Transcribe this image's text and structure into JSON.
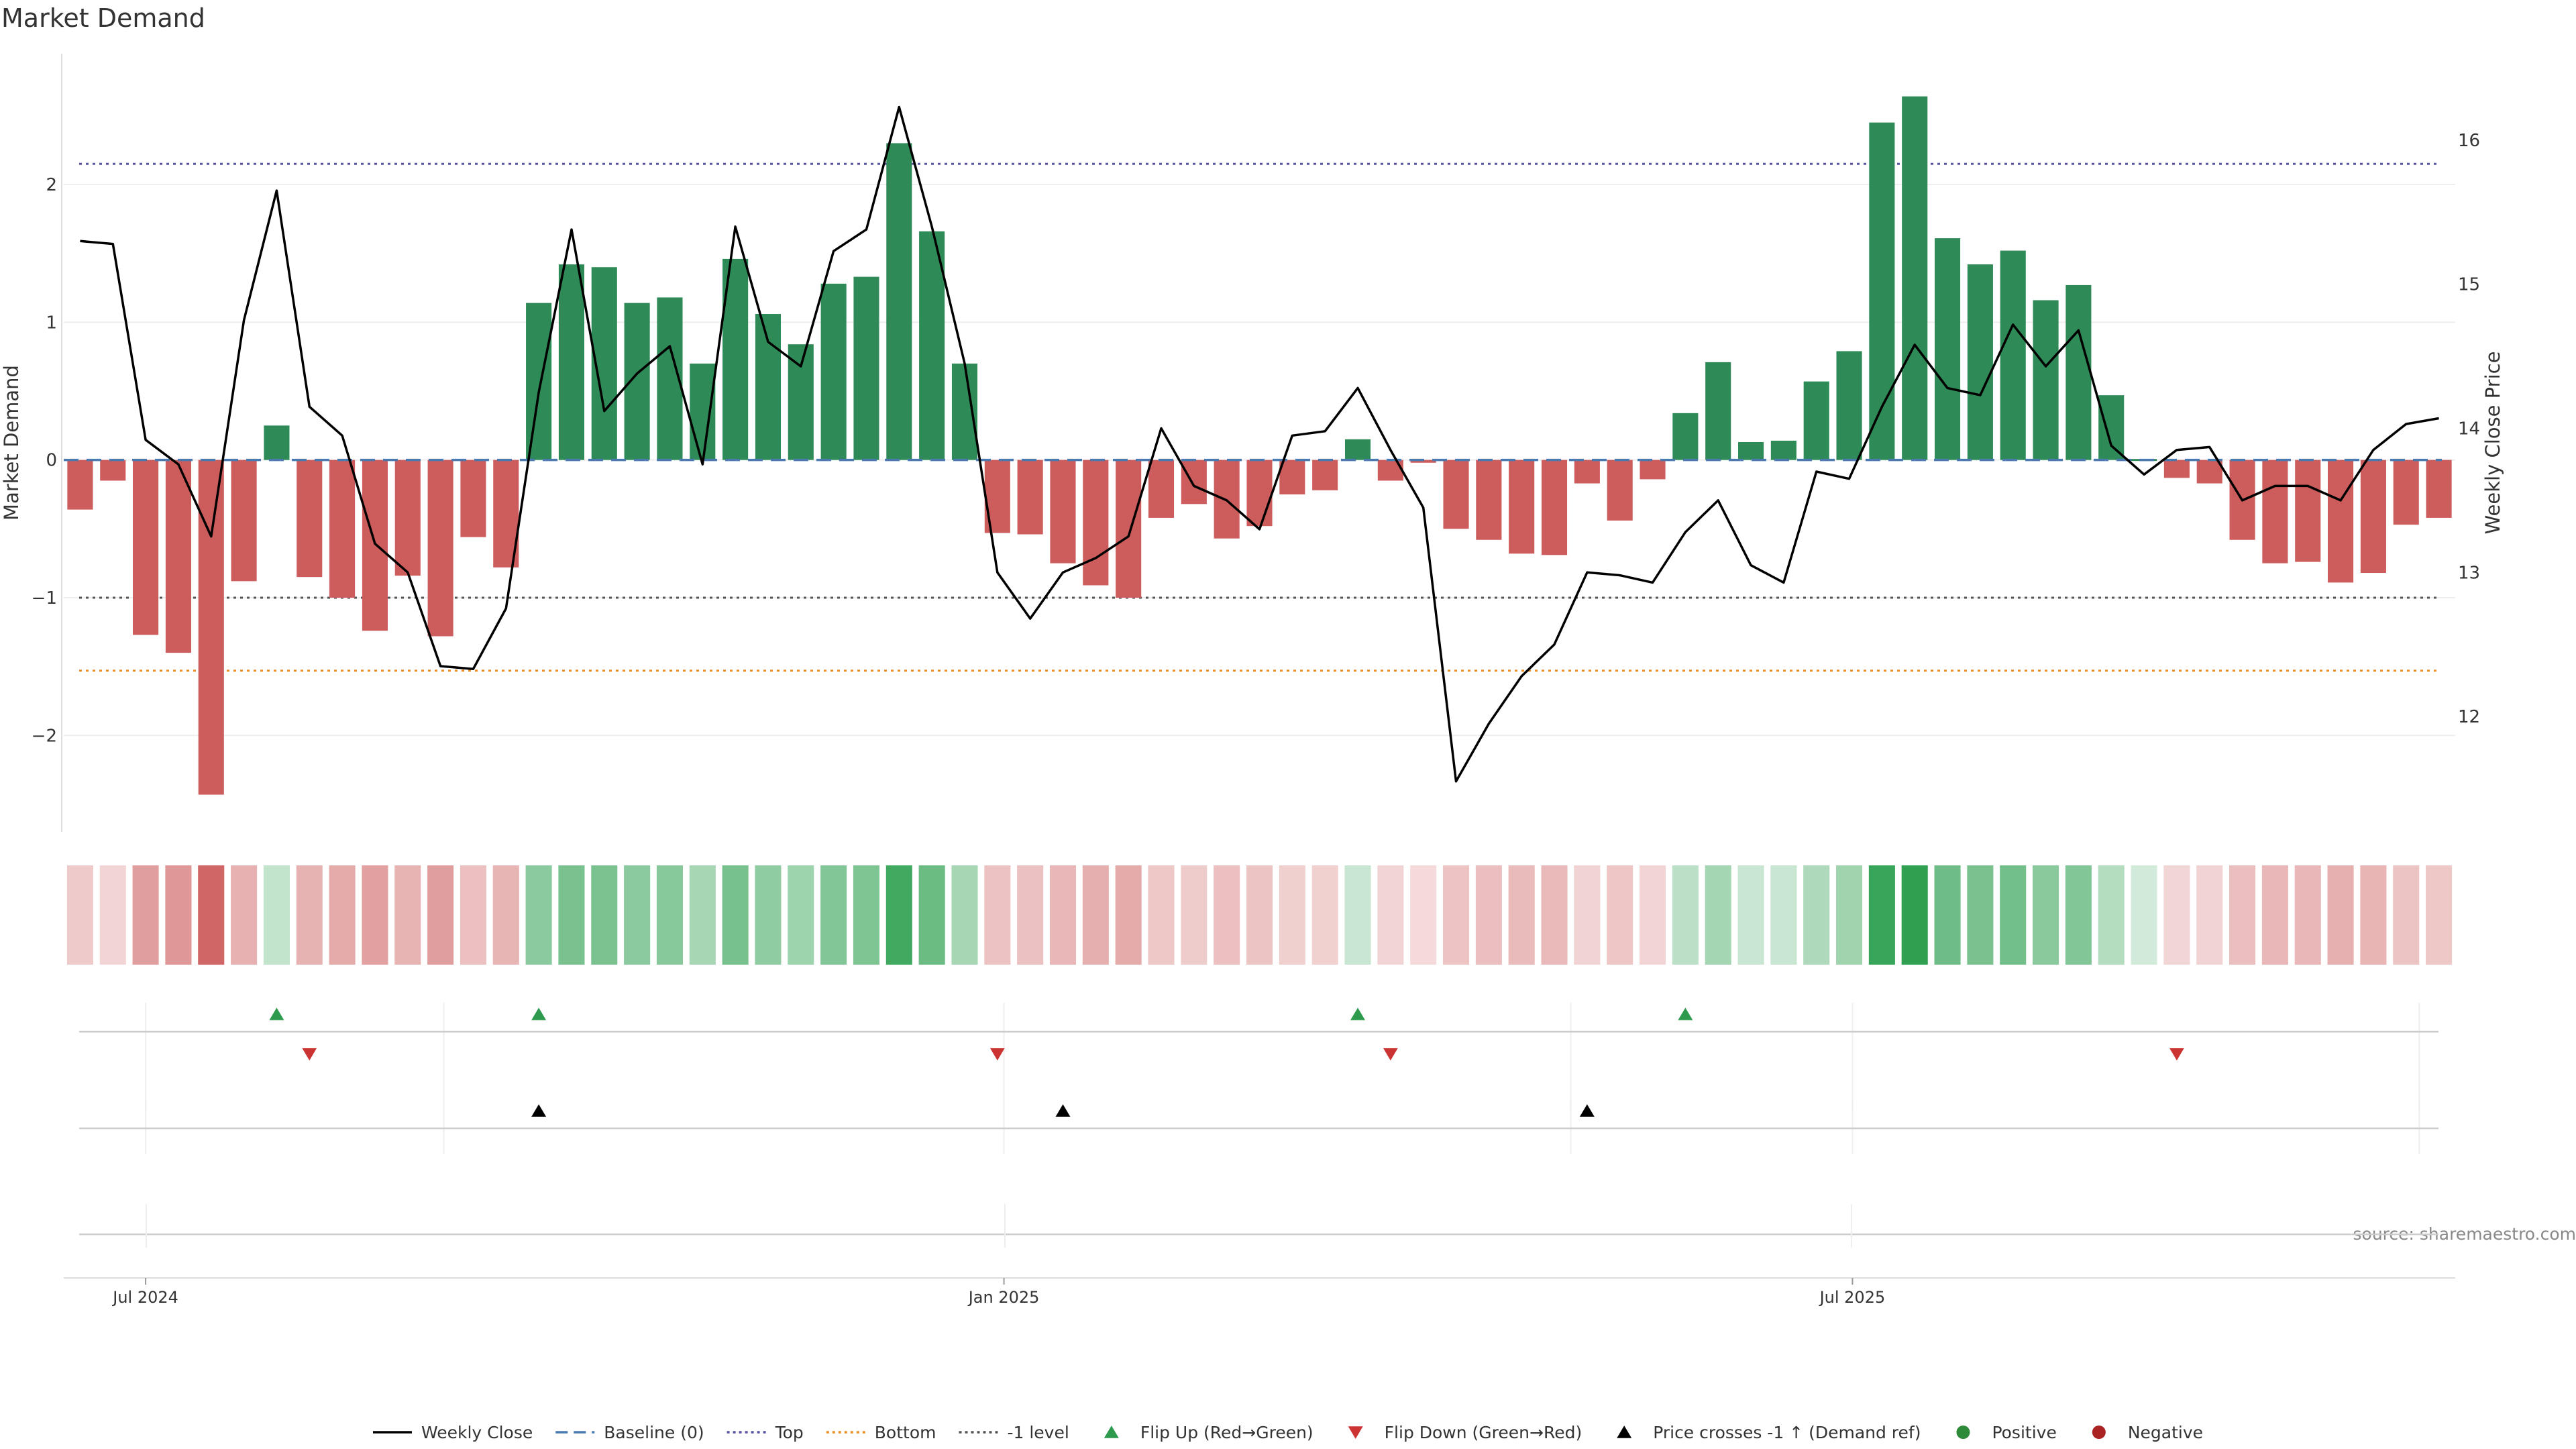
{
  "chart_data": {
    "type": "bar",
    "title": "Market Demand",
    "ylabel": "Market Demand",
    "y2label": "Weekly Close Price",
    "ylim": [
      -2.7,
      2.95
    ],
    "y2lim": [
      11.2,
      16.6
    ],
    "yticks": [
      -2,
      -1,
      0,
      1,
      2
    ],
    "y2ticks": [
      12,
      13,
      14,
      15,
      16
    ],
    "xticks": [
      {
        "label": "Jul 2024",
        "index": 2.5
      },
      {
        "label": "Jan 2025",
        "index": 28.7
      },
      {
        "label": "Jul 2025",
        "index": 54.6
      }
    ],
    "reference_lines": {
      "top": 2.15,
      "bottom": -1.53,
      "minus_one": -1,
      "baseline": 0
    },
    "demand": [
      -0.36,
      -0.15,
      -1.27,
      -1.4,
      -2.43,
      -0.88,
      0.25,
      -0.85,
      -1.0,
      -1.24,
      -0.84,
      -1.28,
      -0.56,
      -0.78,
      1.14,
      1.42,
      1.4,
      1.14,
      1.18,
      0.7,
      1.46,
      1.06,
      0.84,
      1.28,
      1.33,
      2.3,
      1.66,
      0.7,
      -0.53,
      -0.54,
      -0.75,
      -0.91,
      -1.0,
      -0.42,
      -0.32,
      -0.57,
      -0.48,
      -0.25,
      -0.22,
      0.15,
      -0.15,
      -0.02,
      -0.5,
      -0.58,
      -0.68,
      -0.69,
      -0.17,
      -0.44,
      -0.14,
      0.34,
      0.71,
      0.13,
      0.14,
      0.57,
      0.79,
      2.45,
      2.64,
      1.61,
      1.42,
      1.52,
      1.16,
      1.27,
      0.47,
      0,
      -0.13,
      -0.17,
      -0.58,
      -0.75,
      -0.74,
      -0.89,
      -0.82,
      -0.47,
      -0.42
    ],
    "close_points": [
      [
        0.5,
        15.3
      ],
      [
        1.5,
        15.28
      ],
      [
        2.5,
        13.92
      ],
      [
        3.5,
        13.75
      ],
      [
        4.5,
        13.25
      ],
      [
        5.5,
        14.75
      ],
      [
        6.5,
        15.65
      ],
      [
        7.5,
        14.15
      ],
      [
        8.5,
        13.95
      ],
      [
        9.5,
        13.2
      ],
      [
        10.5,
        13.0
      ],
      [
        11.5,
        12.35
      ],
      [
        12.5,
        12.33
      ],
      [
        13.5,
        12.75
      ],
      [
        14.5,
        14.25
      ],
      [
        15.5,
        15.38
      ],
      [
        16.5,
        14.12
      ],
      [
        17.5,
        14.38
      ],
      [
        18.5,
        14.57
      ],
      [
        19.5,
        13.75
      ],
      [
        20.5,
        15.4
      ],
      [
        21.5,
        14.6
      ],
      [
        22.5,
        14.43
      ],
      [
        23.5,
        15.23
      ],
      [
        24.5,
        15.38
      ],
      [
        25.5,
        16.23
      ],
      [
        26.5,
        15.4
      ],
      [
        27.5,
        14.45
      ],
      [
        28.5,
        13.0
      ],
      [
        29.5,
        12.68
      ],
      [
        30.5,
        13.0
      ],
      [
        31.5,
        13.1
      ],
      [
        32.5,
        13.25
      ],
      [
        33.5,
        14.0
      ],
      [
        34.5,
        13.6
      ],
      [
        35.5,
        13.5
      ],
      [
        36.5,
        13.3
      ],
      [
        37.5,
        13.95
      ],
      [
        38.5,
        13.98
      ],
      [
        39.5,
        14.28
      ],
      [
        40.5,
        13.85
      ],
      [
        41.5,
        13.45
      ],
      [
        42.5,
        11.55
      ],
      [
        43.5,
        11.95
      ],
      [
        44.5,
        12.28
      ],
      [
        45.5,
        12.5
      ],
      [
        46.5,
        13.0
      ],
      [
        47.5,
        12.98
      ],
      [
        48.5,
        12.93
      ],
      [
        49.5,
        13.28
      ],
      [
        50.5,
        13.5
      ],
      [
        51.5,
        13.05
      ],
      [
        52.5,
        12.93
      ],
      [
        53.5,
        13.7
      ],
      [
        54.5,
        13.65
      ],
      [
        55.5,
        14.15
      ],
      [
        56.5,
        14.58
      ],
      [
        57.5,
        14.28
      ],
      [
        58.5,
        14.23
      ],
      [
        59.5,
        14.72
      ],
      [
        60.5,
        14.43
      ],
      [
        61.5,
        14.68
      ],
      [
        62.5,
        13.88
      ],
      [
        63.5,
        13.68
      ],
      [
        64.5,
        13.85
      ],
      [
        65.5,
        13.87
      ],
      [
        66.5,
        13.5
      ],
      [
        67.5,
        13.6
      ],
      [
        68.5,
        13.6
      ],
      [
        69.5,
        13.5
      ],
      [
        70.5,
        13.85
      ],
      [
        71.5,
        14.03
      ],
      [
        72.5,
        14.07
      ]
    ],
    "flip_up_index": [
      6,
      14,
      39,
      49
    ],
    "flip_down_index": [
      7,
      28,
      40,
      64
    ],
    "price_cross_index": [
      14,
      30,
      46
    ],
    "source": "source: sharemaestro.com",
    "legend": [
      {
        "label": "Weekly Close",
        "kind": "line",
        "color": "#000000"
      },
      {
        "label": "Baseline (0)",
        "kind": "dash",
        "color": "#4a7ab0"
      },
      {
        "label": "Top",
        "kind": "dot",
        "color": "#5a55a0"
      },
      {
        "label": "Bottom",
        "kind": "dot",
        "color": "#e8912a"
      },
      {
        "label": "-1 level",
        "kind": "dot",
        "color": "#555555"
      },
      {
        "label": "Flip Up (Red→Green)",
        "kind": "up",
        "color": "#2e9a4e"
      },
      {
        "label": "Flip Down (Green→Red)",
        "kind": "down",
        "color": "#cc3333"
      },
      {
        "label": "Price crosses -1 ↑ (Demand ref)",
        "kind": "up",
        "color": "#000000"
      },
      {
        "label": "Positive",
        "kind": "circle",
        "color": "#2e8b3a"
      },
      {
        "label": "Negative",
        "kind": "circle",
        "color": "#aa2222"
      }
    ],
    "colors": {
      "positive": "#2e8b57",
      "negative": "#cd5c5c"
    },
    "legend_placement": "bottom-center"
  }
}
